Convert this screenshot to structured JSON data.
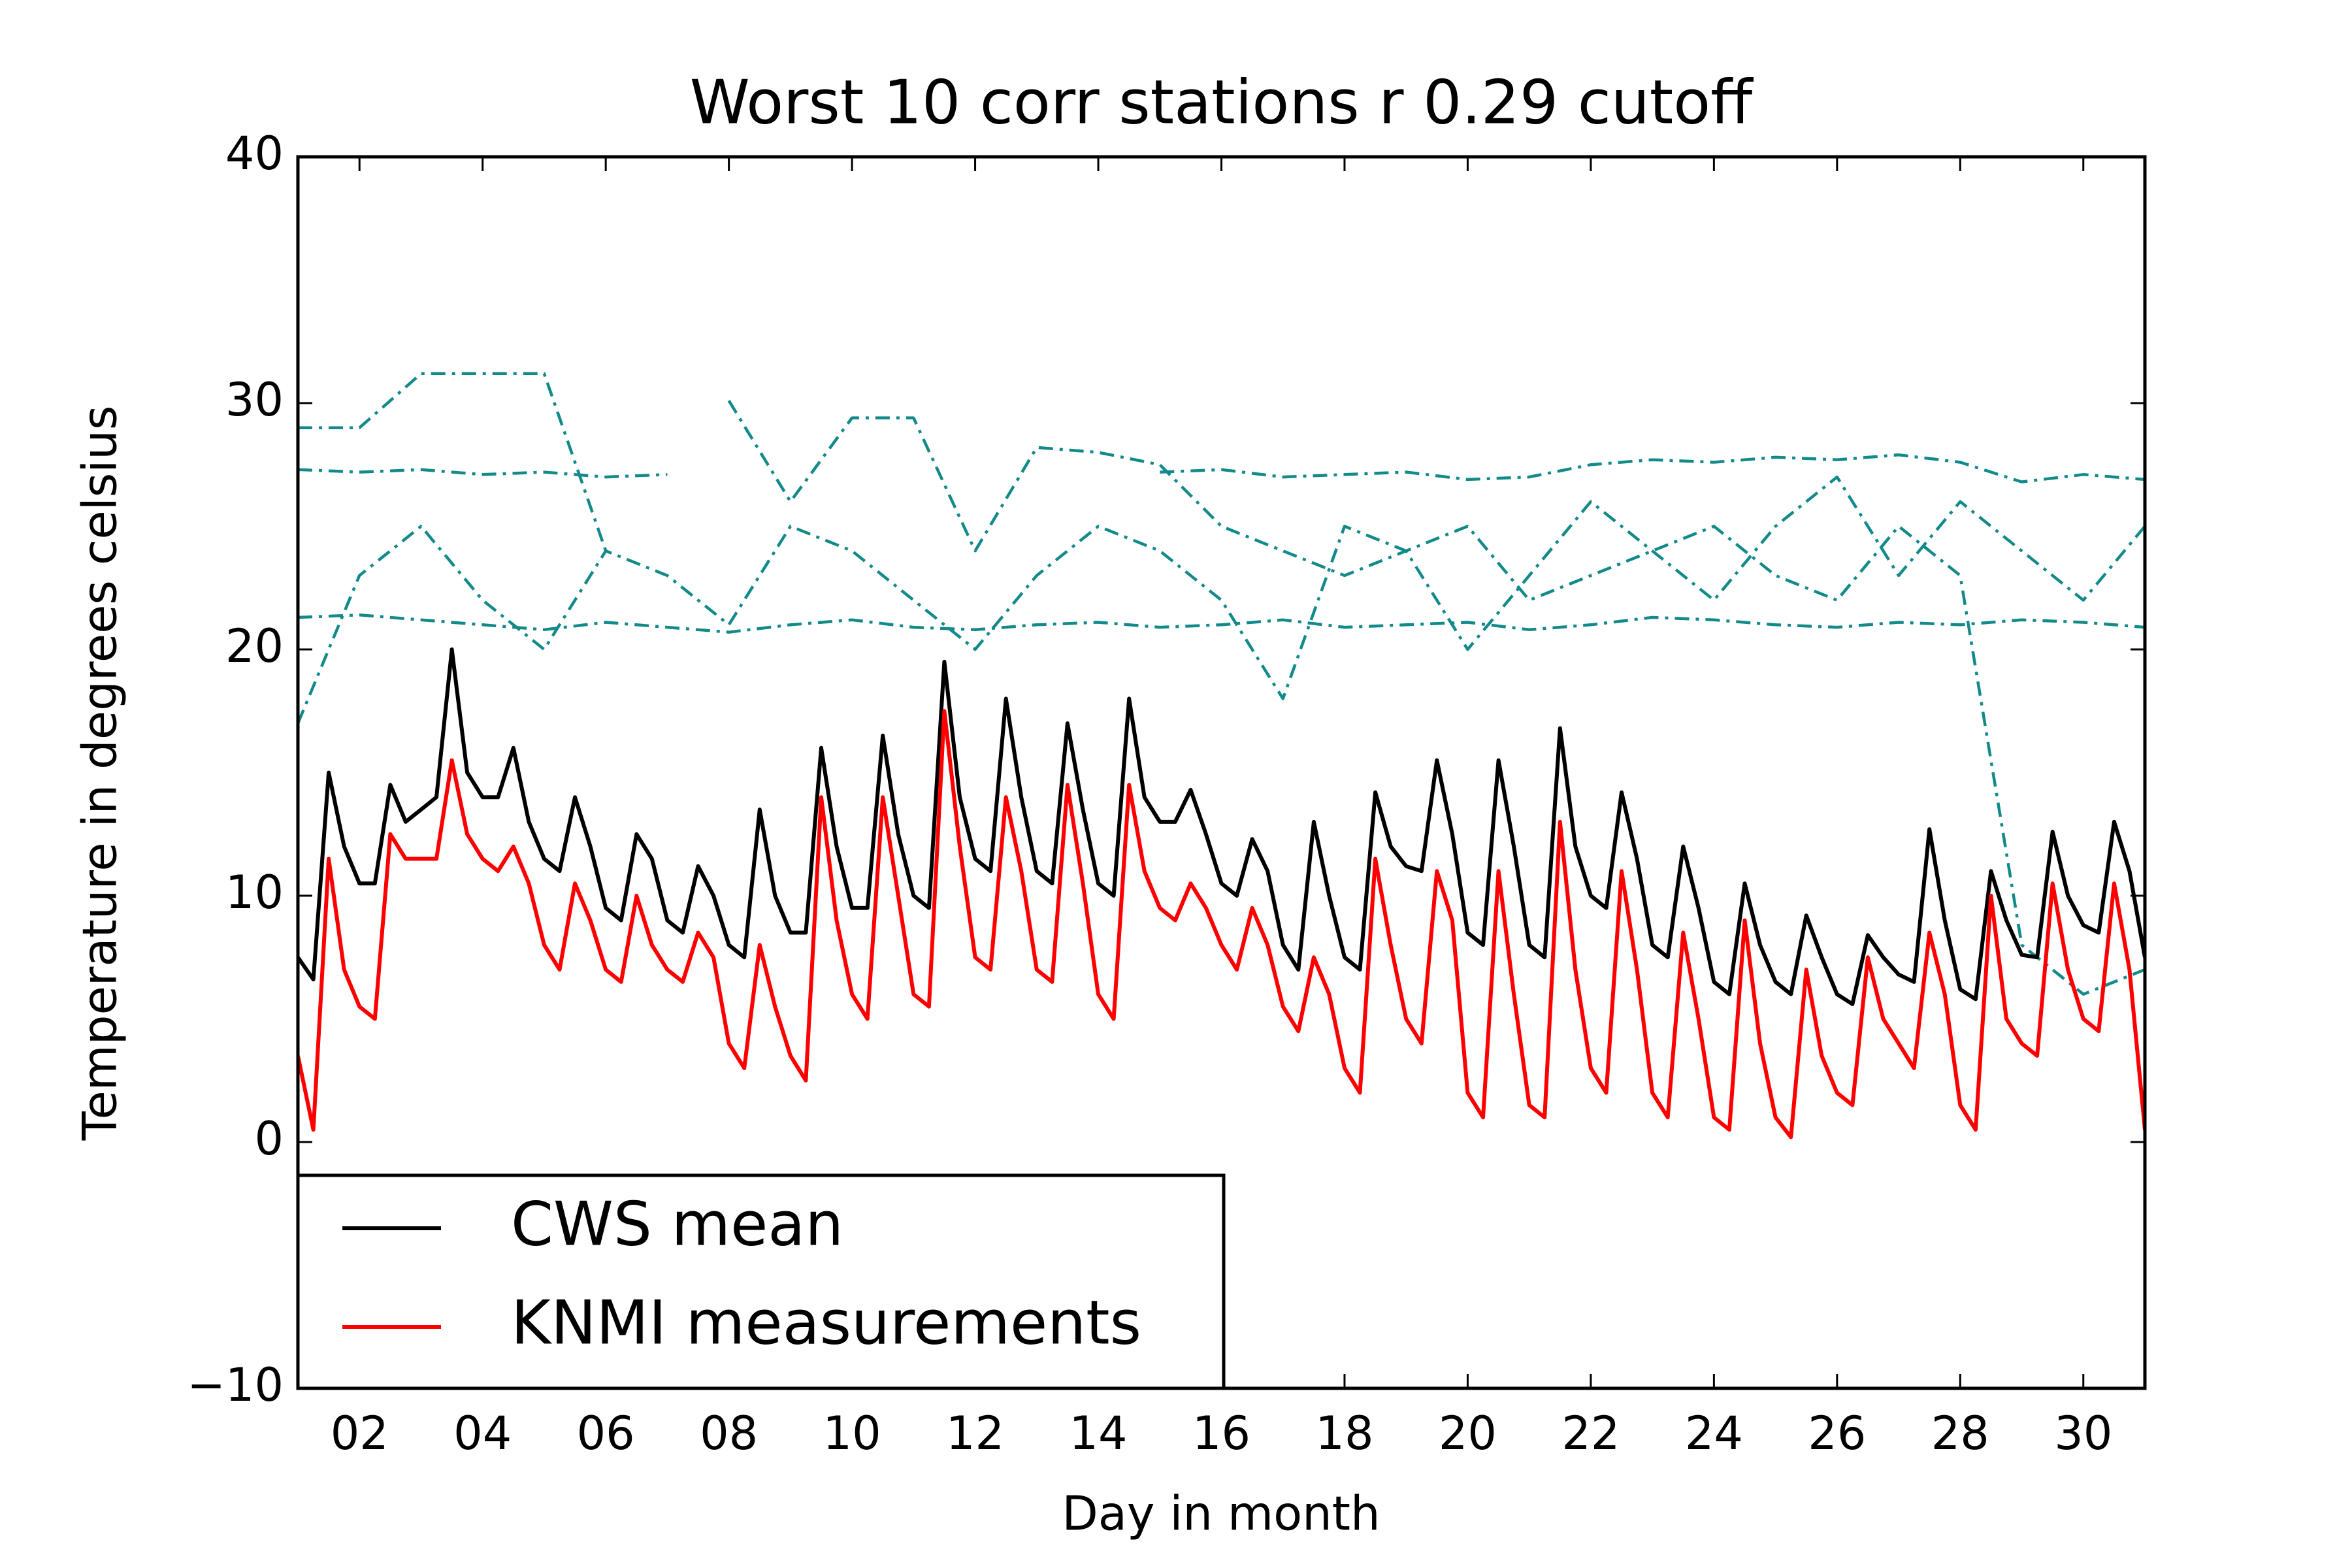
{
  "chart_data": {
    "type": "line",
    "title": "Worst 10 corr stations r 0.29 cutoff",
    "x_label": "Day in month",
    "y_label": "Temperature in degrees celsius",
    "xlim": [
      1,
      31
    ],
    "ylim": [
      -10,
      40
    ],
    "xticks": [
      {
        "value": 2,
        "label": "02"
      },
      {
        "value": 4,
        "label": "04"
      },
      {
        "value": 6,
        "label": "06"
      },
      {
        "value": 8,
        "label": "08"
      },
      {
        "value": 10,
        "label": "10"
      },
      {
        "value": 12,
        "label": "12"
      },
      {
        "value": 14,
        "label": "14"
      },
      {
        "value": 16,
        "label": "16"
      },
      {
        "value": 18,
        "label": "18"
      },
      {
        "value": 20,
        "label": "20"
      },
      {
        "value": 22,
        "label": "22"
      },
      {
        "value": 24,
        "label": "24"
      },
      {
        "value": 26,
        "label": "26"
      },
      {
        "value": 28,
        "label": "28"
      },
      {
        "value": 30,
        "label": "30"
      }
    ],
    "yticks": [
      {
        "value": -10,
        "label": "−10"
      },
      0,
      10,
      20,
      30,
      40
    ],
    "legend": "lower left",
    "x": [
      1,
      1.25,
      1.5,
      1.75,
      2,
      2.25,
      2.5,
      2.75,
      3,
      3.25,
      3.5,
      3.75,
      4,
      4.25,
      4.5,
      4.75,
      5,
      5.25,
      5.5,
      5.75,
      6,
      6.25,
      6.5,
      6.75,
      7,
      7.25,
      7.5,
      7.75,
      8,
      8.25,
      8.5,
      8.75,
      9,
      9.25,
      9.5,
      9.75,
      10,
      10.25,
      10.5,
      10.75,
      11,
      11.25,
      11.5,
      11.75,
      12,
      12.25,
      12.5,
      12.75,
      13,
      13.25,
      13.5,
      13.75,
      14,
      14.25,
      14.5,
      14.75,
      15,
      15.25,
      15.5,
      15.75,
      16,
      16.25,
      16.5,
      16.75,
      17,
      17.25,
      17.5,
      17.75,
      18,
      18.25,
      18.5,
      18.75,
      19,
      19.25,
      19.5,
      19.75,
      20,
      20.25,
      20.5,
      20.75,
      21,
      21.25,
      21.5,
      21.75,
      22,
      22.25,
      22.5,
      22.75,
      23,
      23.25,
      23.5,
      23.75,
      24,
      24.25,
      24.5,
      24.75,
      25,
      25.25,
      25.5,
      25.75,
      26,
      26.25,
      26.5,
      26.75,
      27,
      27.25,
      27.5,
      27.75,
      28,
      28.25,
      28.5,
      28.75,
      29,
      29.25,
      29.5,
      29.75,
      30,
      30.25,
      30.5,
      30.75,
      31
    ],
    "series": [
      {
        "color": "#138a8a",
        "dash": "dashdot",
        "x": [
          1,
          2,
          3,
          4,
          5,
          6,
          7,
          8,
          9,
          10,
          11,
          12,
          13,
          14,
          15,
          16,
          17,
          18,
          19,
          20,
          21,
          22,
          23,
          24,
          25,
          26,
          27,
          28,
          29,
          30,
          31
        ],
        "values": [
          27.3,
          27.2,
          27.3,
          27.1,
          27.2,
          27.0,
          27.1,
          null,
          null,
          null,
          null,
          null,
          null,
          null,
          27.2,
          27.3,
          27.0,
          27.1,
          27.2,
          26.9,
          27.0,
          27.5,
          27.7,
          27.6,
          27.8,
          27.7,
          27.9,
          27.6,
          26.8,
          27.1,
          26.9
        ]
      },
      {
        "color": "#138a8a",
        "dash": "dashdot",
        "x": [
          1,
          2,
          3,
          4,
          5,
          6,
          7,
          8,
          9,
          10,
          11,
          12,
          13,
          14,
          15,
          16,
          17,
          18,
          19,
          20,
          21,
          22,
          23,
          24,
          25,
          26,
          27,
          28,
          29,
          30,
          31
        ],
        "values": [
          21.3,
          21.4,
          21.2,
          21.0,
          20.8,
          21.1,
          20.9,
          20.7,
          21.0,
          21.2,
          20.9,
          20.8,
          21.0,
          21.1,
          20.9,
          21.0,
          21.2,
          20.9,
          21.0,
          21.1,
          20.8,
          21.0,
          21.3,
          21.2,
          21.0,
          20.9,
          21.1,
          21.0,
          21.2,
          21.1,
          20.9
        ]
      },
      {
        "color": "#138a8a",
        "dash": "dashdot",
        "x": [
          1,
          2,
          3,
          4,
          5,
          6,
          7,
          8,
          9,
          10,
          11,
          12,
          13,
          14,
          15,
          16,
          17,
          18,
          19,
          20,
          21,
          22,
          23,
          24,
          25,
          26,
          27,
          28,
          29,
          30,
          31
        ],
        "values": [
          29,
          29,
          31.2,
          31.2,
          31.2,
          24,
          null,
          30.1,
          26,
          29.4,
          29.4,
          24,
          28.2,
          28,
          27.5,
          25,
          24,
          23,
          24,
          25,
          22,
          23,
          24,
          25,
          23,
          22,
          25,
          23,
          8,
          6,
          7
        ]
      },
      {
        "color": "#138a8a",
        "dash": "dashdot",
        "x": [
          1,
          2,
          3,
          4,
          5,
          6,
          7,
          8,
          9,
          10,
          11,
          12,
          13,
          14,
          15,
          16,
          17,
          18,
          19,
          20,
          21,
          22,
          23,
          24,
          25,
          26,
          27,
          28,
          29,
          30,
          31
        ],
        "values": [
          17,
          23,
          25,
          22,
          20,
          24,
          23,
          21,
          25,
          24,
          22,
          20,
          23,
          25,
          24,
          22,
          18,
          25,
          24,
          20,
          23,
          26,
          24,
          22,
          25,
          27,
          23,
          26,
          24,
          22,
          25
        ]
      },
      {
        "name": "CWS mean",
        "color": "#000000",
        "values": [
          7.5,
          6.6,
          15,
          12,
          10.5,
          10.5,
          14.5,
          13,
          13.5,
          14,
          20,
          15,
          14,
          14,
          16,
          13,
          11.5,
          11,
          14,
          12,
          9.5,
          9,
          12.5,
          11.5,
          9,
          8.5,
          11.2,
          10,
          8,
          7.5,
          13.5,
          10,
          8.5,
          8.5,
          16,
          12,
          9.5,
          9.5,
          16.5,
          12.5,
          10,
          9.5,
          19.5,
          14,
          11.5,
          11,
          18,
          14,
          11,
          10.5,
          17,
          13.5,
          10.5,
          10,
          18,
          14,
          13,
          13,
          14.3,
          12.5,
          10.5,
          10,
          12.3,
          11,
          8,
          7,
          13,
          10,
          7.5,
          7,
          14.2,
          12,
          11.2,
          11,
          15.5,
          12.5,
          8.5,
          8,
          15.5,
          12,
          8,
          7.5,
          16.8,
          12,
          10,
          9.5,
          14.2,
          11.5,
          8,
          7.5,
          12,
          9.5,
          6.5,
          6,
          10.5,
          8,
          6.5,
          6,
          9.2,
          7.5,
          6,
          5.6,
          8.4,
          7.5,
          6.8,
          6.5,
          12.7,
          9,
          6.2,
          5.8,
          11,
          9,
          7.6,
          7.5,
          12.6,
          10,
          8.8,
          8.5,
          13,
          11,
          7.5
        ]
      },
      {
        "name": "KNMI measurements",
        "color": "#ff0000",
        "values": [
          3.5,
          0.5,
          11.5,
          7,
          5.5,
          5,
          12.5,
          11.5,
          11.5,
          11.5,
          15.5,
          12.5,
          11.5,
          11,
          12,
          10.5,
          8,
          7,
          10.5,
          9,
          7,
          6.5,
          10,
          8,
          7,
          6.5,
          8.5,
          7.5,
          4,
          3,
          8,
          5.5,
          3.5,
          2.5,
          14,
          9,
          6,
          5,
          14,
          10,
          6,
          5.5,
          17.5,
          12,
          7.5,
          7,
          14,
          11,
          7,
          6.5,
          14.5,
          10.5,
          6,
          5,
          14.5,
          11,
          9.5,
          9,
          10.5,
          9.5,
          8,
          7,
          9.5,
          8,
          5.5,
          4.5,
          7.5,
          6,
          3,
          2,
          11.5,
          8,
          5,
          4,
          11,
          9,
          2,
          1,
          11,
          6,
          1.5,
          1,
          13,
          7,
          3,
          2,
          11,
          7,
          2,
          1,
          8.5,
          5,
          1,
          0.5,
          9,
          4,
          1,
          0.2,
          7,
          3.5,
          2,
          1.5,
          7.5,
          5,
          4,
          3,
          8.5,
          6,
          1.5,
          0.5,
          10,
          5,
          4,
          3.5,
          10.5,
          7,
          5,
          4.5,
          10.5,
          7,
          0.5
        ]
      }
    ]
  }
}
